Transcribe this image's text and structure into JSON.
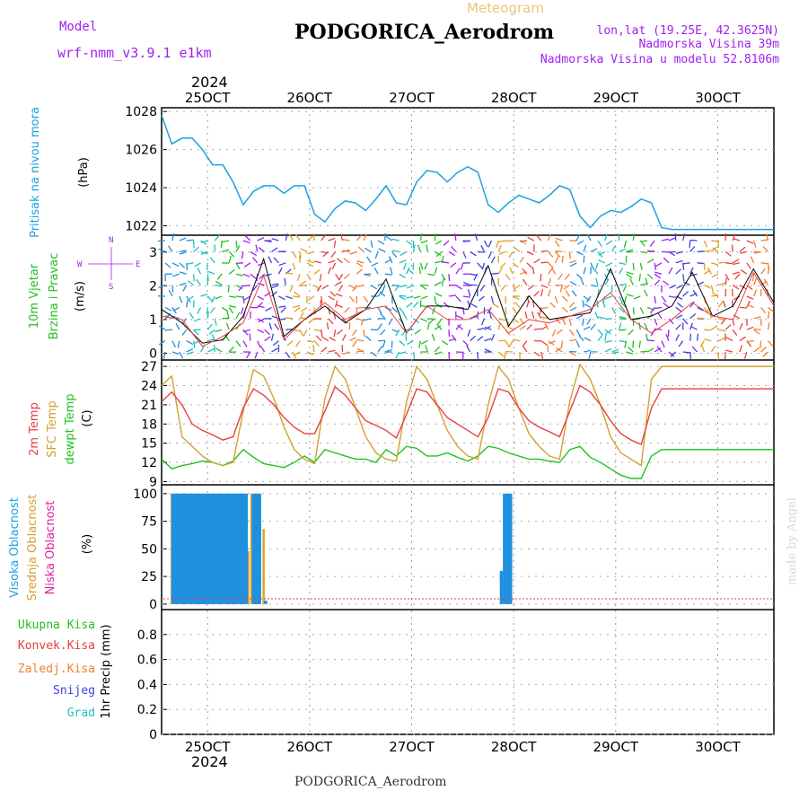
{
  "header": {
    "model_label": "Model",
    "model_name": "wrf-nmm_v3.9.1 e1km",
    "meteogram_label": "Meteogram",
    "station": "PODGORICA_Aerodrom",
    "lonlat": "lon,lat (19.25E, 42.3625N)",
    "elevation": "Nadmorska Visina 39m",
    "model_elevation": "Nadmorska Visina u modelu 52.8106m",
    "footer_station": "PODGORICA_Aerodrom",
    "credit": "made by Angel"
  },
  "time_axis": {
    "year": "2024",
    "date_labels": [
      "25OCT",
      "26OCT",
      "27OCT",
      "28OCT",
      "29OCT",
      "30OCT"
    ]
  },
  "colors": {
    "pressure": "#1ba1e2",
    "temp2m": "#e84040",
    "sfc": "#d4a030",
    "dewpt": "#20c020",
    "high_cloud": "#1e90e0",
    "mid_cloud": "#e0a020",
    "low_cloud": "#e020a0",
    "label_green": "#20c020",
    "label_purple": "#a020f0"
  },
  "panels": {
    "pressure": {
      "ylabel": "Pritisak na nivou mora",
      "unit": "(hPa)"
    },
    "wind": {
      "ylabel1": "10m Vjetar",
      "ylabel2": "Brzina i Pravac",
      "unit": "(m/s)",
      "compass": [
        "N",
        "S",
        "W",
        "E"
      ]
    },
    "temp": {
      "ylabel1": "2m Temp",
      "ylabel2": "SFC Temp",
      "ylabel3": "dewpt Temp",
      "unit": "(C)"
    },
    "cloud": {
      "ylabel1": "Visoka Oblacnost",
      "ylabel2": "Srednja Oblacnost",
      "ylabel3": "Niska Oblacnost",
      "unit": "(%)"
    },
    "precip": {
      "ylabel": "1hr Precip (mm)",
      "legend": [
        "Ukupna Kisa",
        "Konvek.Kisa",
        "Zaledj.Kisa",
        "Snijeg",
        "Grad"
      ]
    }
  },
  "chart_data": [
    {
      "type": "line",
      "ylim": [
        1021.5,
        1028.2
      ],
      "yticks": [
        1022,
        1024,
        1026,
        1028
      ],
      "series": [
        {
          "x": [
            0,
            1,
            2,
            3,
            4,
            5,
            6,
            7,
            8,
            9,
            10,
            11,
            12,
            13,
            14,
            15,
            16,
            17,
            18,
            19,
            20,
            21,
            22,
            23,
            24,
            25,
            26,
            27,
            28,
            29,
            30,
            31,
            32,
            33,
            34,
            35,
            36,
            37,
            38,
            39,
            40,
            41,
            42,
            43,
            44,
            45,
            46,
            47,
            48,
            49,
            50,
            51,
            52,
            53,
            54,
            55,
            56,
            57,
            58,
            59,
            60
          ],
          "values": [
            1027.8,
            1026.3,
            1026.6,
            1026.6,
            1026.0,
            1025.2,
            1025.2,
            1024.3,
            1023.1,
            1023.8,
            1024.1,
            1024.1,
            1023.7,
            1024.1,
            1024.1,
            1022.6,
            1022.2,
            1022.9,
            1023.3,
            1023.2,
            1022.8,
            1023.4,
            1024.1,
            1023.2,
            1023.1,
            1024.3,
            1024.9,
            1024.8,
            1024.3,
            1024.8,
            1025.1,
            1024.8,
            1023.1,
            1022.7,
            1023.2,
            1023.6,
            1023.4,
            1023.2,
            1023.6,
            1024.1,
            1023.9,
            1022.5,
            1021.9,
            1022.5,
            1022.8,
            1022.7,
            1023.0,
            1023.4,
            1023.2,
            1021.9,
            1021.8,
            1021.8,
            1021.8,
            1021.8,
            1021.8,
            1021.8,
            1021.8,
            1021.8,
            1021.8,
            1021.8,
            1021.8
          ]
        }
      ]
    },
    {
      "type": "scatter",
      "ylim": [
        -0.2,
        3.5
      ],
      "yticks": [
        0,
        1,
        2,
        3
      ],
      "series": [
        {
          "x": [
            0,
            2,
            4,
            6,
            8,
            10,
            12,
            14,
            16,
            18,
            20,
            22,
            24,
            26,
            28,
            30,
            32,
            34,
            36,
            38,
            40,
            42,
            44,
            46,
            48,
            50,
            52,
            54,
            56,
            58,
            60
          ],
          "values": [
            1.3,
            0.9,
            0.3,
            0.4,
            1.1,
            2.8,
            0.5,
            1.0,
            1.4,
            0.9,
            1.3,
            2.2,
            0.6,
            1.4,
            1.4,
            1.3,
            2.6,
            0.8,
            1.7,
            1.0,
            1.1,
            1.2,
            2.5,
            1.0,
            1.1,
            1.4,
            2.4,
            1.1,
            1.4,
            2.5,
            1.5
          ]
        },
        {
          "x": [
            0,
            2,
            4,
            6,
            8,
            10,
            12,
            14,
            16,
            18,
            20,
            22,
            24,
            26,
            28,
            30,
            32,
            34,
            36,
            38,
            40,
            42,
            44,
            46,
            48,
            50,
            52,
            54,
            56,
            58,
            60
          ],
          "values": [
            1.1,
            1.0,
            0.2,
            0.5,
            0.9,
            2.3,
            0.4,
            1.0,
            1.5,
            1.0,
            1.3,
            1.4,
            0.6,
            1.4,
            1.0,
            1.0,
            1.3,
            0.6,
            1.0,
            0.9,
            1.1,
            1.3,
            1.8,
            1.0,
            0.6,
            1.0,
            1.5,
            1.1,
            1.0,
            2.4,
            1.4
          ]
        }
      ]
    },
    {
      "type": "line",
      "ylim": [
        8.5,
        28
      ],
      "yticks": [
        9,
        12,
        15,
        18,
        21,
        24,
        27
      ],
      "series": [
        {
          "x": [
            0,
            1,
            2,
            3,
            4,
            5,
            6,
            7,
            8,
            9,
            10,
            11,
            12,
            13,
            14,
            15,
            16,
            17,
            18,
            19,
            20,
            21,
            22,
            23,
            24,
            25,
            26,
            27,
            28,
            29,
            30,
            31,
            32,
            33,
            34,
            35,
            36,
            37,
            38,
            39,
            40,
            41,
            42,
            43,
            44,
            45,
            46,
            47,
            48,
            49,
            50,
            51,
            52,
            53,
            54,
            55,
            56,
            57,
            58,
            59,
            60
          ],
          "values": [
            21.5,
            23.0,
            21.0,
            18.0,
            17.0,
            16.3,
            15.5,
            16.0,
            20.5,
            23.5,
            22.5,
            21.0,
            19.0,
            17.5,
            16.5,
            16.5,
            20.0,
            23.8,
            22.5,
            20.5,
            18.5,
            17.8,
            17.0,
            15.8,
            19.5,
            23.5,
            23.0,
            21.0,
            19.0,
            18.0,
            17.0,
            16.0,
            19.0,
            23.5,
            23.0,
            20.5,
            18.5,
            17.5,
            16.8,
            16.0,
            20.0,
            24.0,
            23.0,
            21.0,
            18.5,
            16.5,
            15.5,
            14.8,
            20.5,
            23.5,
            23.5,
            23.5,
            23.5,
            23.5,
            23.5,
            23.5,
            23.5,
            23.5,
            23.5,
            23.5,
            23.5
          ]
        },
        {
          "x": [
            0,
            1,
            2,
            3,
            4,
            5,
            6,
            7,
            8,
            9,
            10,
            11,
            12,
            13,
            14,
            15,
            16,
            17,
            18,
            19,
            20,
            21,
            22,
            23,
            24,
            25,
            26,
            27,
            28,
            29,
            30,
            31,
            32,
            33,
            34,
            35,
            36,
            37,
            38,
            39,
            40,
            41,
            42,
            43,
            44,
            45,
            46,
            47,
            48,
            49,
            50,
            51,
            52,
            53,
            54,
            55,
            56,
            57,
            58,
            59,
            60
          ],
          "values": [
            24.0,
            25.5,
            16.0,
            14.5,
            13.0,
            12.0,
            11.5,
            12.0,
            20.0,
            26.5,
            25.5,
            22.0,
            17.5,
            14.0,
            12.5,
            11.8,
            22.0,
            27.0,
            25.0,
            20.5,
            16.0,
            13.5,
            12.5,
            12.2,
            21.5,
            27.0,
            25.0,
            21.0,
            17.0,
            14.5,
            13.0,
            12.5,
            21.0,
            27.0,
            25.0,
            20.5,
            16.5,
            14.5,
            13.0,
            12.5,
            21.5,
            27.3,
            25.0,
            21.0,
            16.0,
            13.5,
            12.5,
            11.5,
            25.0,
            27.0,
            27.0,
            27.0,
            27.0,
            27.0,
            27.0,
            27.0,
            27.0,
            27.0,
            27.0,
            27.0,
            27.0
          ]
        },
        {
          "x": [
            0,
            1,
            2,
            3,
            4,
            5,
            6,
            7,
            8,
            9,
            10,
            11,
            12,
            13,
            14,
            15,
            16,
            17,
            18,
            19,
            20,
            21,
            22,
            23,
            24,
            25,
            26,
            27,
            28,
            29,
            30,
            31,
            32,
            33,
            34,
            35,
            36,
            37,
            38,
            39,
            40,
            41,
            42,
            43,
            44,
            45,
            46,
            47,
            48,
            49,
            50,
            51,
            52,
            53,
            54,
            55,
            56,
            57,
            58,
            59,
            60
          ],
          "values": [
            12.5,
            11.0,
            11.5,
            11.8,
            12.2,
            12.0,
            11.5,
            12.2,
            14.0,
            12.8,
            11.8,
            11.5,
            11.2,
            12.0,
            13.0,
            12.0,
            14.0,
            13.5,
            13.0,
            12.5,
            12.5,
            12.0,
            14.0,
            13.0,
            14.5,
            14.2,
            13.0,
            13.0,
            13.5,
            12.8,
            12.2,
            13.0,
            14.5,
            14.2,
            13.5,
            13.0,
            12.5,
            12.5,
            12.2,
            12.0,
            14.0,
            14.5,
            12.8,
            12.0,
            11.0,
            10.0,
            9.5,
            9.5,
            13.0,
            14.0,
            14.0,
            14.0,
            14.0,
            14.0,
            14.0,
            14.0,
            14.0,
            14.0,
            14.0,
            14.0,
            14.0
          ]
        }
      ]
    },
    {
      "type": "bar",
      "ylim": [
        -5,
        108
      ],
      "yticks": [
        0,
        25,
        50,
        75,
        100
      ],
      "high_cloud": {
        "x": [
          1.1,
          1.4,
          1.7,
          2.0,
          2.3,
          2.6,
          2.9,
          3.2,
          3.5,
          3.8,
          4.1,
          4.4,
          4.7,
          5.0,
          5.3,
          5.6,
          5.9,
          6.2,
          6.5,
          6.8,
          7.1,
          7.4,
          7.7,
          8.0,
          8.3,
          9.0,
          9.3,
          9.6,
          10.2,
          33.3,
          33.6,
          33.9,
          34.2
        ],
        "values": [
          100,
          100,
          100,
          100,
          100,
          100,
          100,
          100,
          100,
          100,
          100,
          100,
          100,
          100,
          100,
          100,
          100,
          100,
          100,
          100,
          100,
          100,
          100,
          100,
          100,
          100,
          100,
          100,
          3,
          30,
          100,
          100,
          100
        ]
      },
      "mid_cloud": {
        "x": [
          1.0,
          1.3,
          1.6,
          1.9,
          2.2,
          2.5,
          2.8,
          3.1,
          3.4,
          3.7,
          4.0,
          4.3,
          4.6,
          4.9,
          5.2,
          5.5,
          5.8,
          6.1,
          6.4,
          6.7,
          7.0,
          7.3,
          7.6,
          7.9,
          8.2,
          8.5,
          8.8,
          9.1,
          9.5,
          10.0
        ],
        "values": [
          100,
          100,
          100,
          100,
          100,
          100,
          100,
          100,
          100,
          100,
          100,
          100,
          100,
          100,
          100,
          100,
          100,
          100,
          100,
          100,
          100,
          100,
          100,
          100,
          100,
          48,
          100,
          28,
          100,
          68
        ]
      },
      "low_cloud": {
        "x": [],
        "values": []
      }
    },
    {
      "type": "bar",
      "ylim": [
        0,
        1.0
      ],
      "yticks": [
        0,
        0.2,
        0.4,
        0.6,
        0.8
      ],
      "x": [],
      "values": []
    }
  ]
}
